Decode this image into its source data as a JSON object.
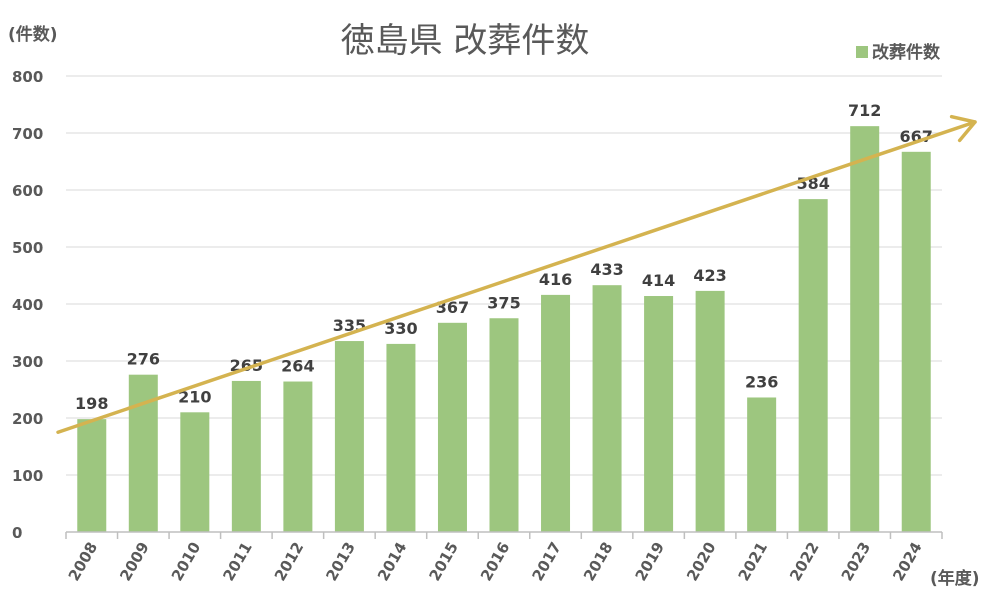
{
  "chart_data": {
    "type": "bar",
    "title": "徳島県 改葬件数",
    "ylabel": "(件数)",
    "xlabel": "(年度)",
    "ylim": [
      0,
      800
    ],
    "yticks": [
      0,
      100,
      200,
      300,
      400,
      500,
      600,
      700,
      800
    ],
    "grid": true,
    "legend_position": "top-right",
    "categories": [
      "2008",
      "2009",
      "2010",
      "2011",
      "2012",
      "2013",
      "2014",
      "2015",
      "2016",
      "2017",
      "2018",
      "2019",
      "2020",
      "2021",
      "2022",
      "2023",
      "2024"
    ],
    "series": [
      {
        "name": "改葬件数",
        "color": "#9DC67F",
        "values": [
          198,
          276,
          210,
          265,
          264,
          335,
          330,
          367,
          375,
          416,
          433,
          414,
          423,
          236,
          584,
          712,
          667
        ]
      }
    ],
    "trend_arrow": {
      "color": "#D4B350",
      "from": {
        "x": "2008",
        "y": 175
      },
      "to": {
        "x": "2024",
        "y": 700
      }
    }
  }
}
